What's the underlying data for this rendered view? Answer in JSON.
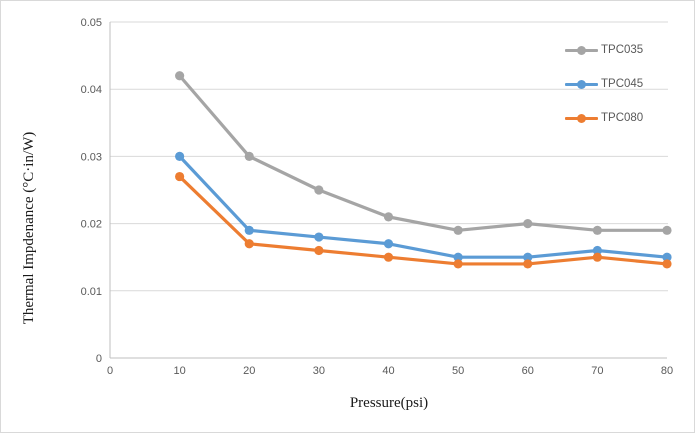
{
  "figure": {
    "background": "#ffffff",
    "border_color": "#d9d9d9"
  },
  "chart_data": {
    "type": "line",
    "title": "",
    "xlabel": "Pressure(psi)",
    "ylabel": "Thermal Impdenance (°C·in/W)",
    "x": [
      10,
      20,
      30,
      40,
      50,
      60,
      70,
      80
    ],
    "series": [
      {
        "name": "TPC035",
        "color": "#a5a5a5",
        "values": [
          0.042,
          0.03,
          0.025,
          0.021,
          0.019,
          0.02,
          0.019,
          0.019
        ]
      },
      {
        "name": "TPC045",
        "color": "#5b9bd5",
        "values": [
          0.03,
          0.019,
          0.018,
          0.017,
          0.015,
          0.015,
          0.016,
          0.015
        ]
      },
      {
        "name": "TPC080",
        "color": "#ed7d31",
        "values": [
          0.027,
          0.017,
          0.016,
          0.015,
          0.014,
          0.014,
          0.015,
          0.014
        ]
      }
    ],
    "xlim": [
      0,
      80
    ],
    "ylim": [
      0,
      0.05
    ],
    "x_ticks": [
      0,
      10,
      20,
      30,
      40,
      50,
      60,
      70,
      80
    ],
    "x_tick_labels": [
      "0",
      "10",
      "20",
      "30",
      "40",
      "50",
      "60",
      "70",
      "80"
    ],
    "y_ticks": [
      0,
      0.01,
      0.02,
      0.03,
      0.04,
      0.05
    ],
    "y_tick_labels": [
      "0",
      "0.01",
      "0.02",
      "0.03",
      "0.04",
      "0.05"
    ],
    "grid": "horizontal-only",
    "legend_position": "inside-top-right",
    "axis_color": "#bfbfbf",
    "gridline_color": "#d9d9d9",
    "tick_label_color": "#595959"
  }
}
